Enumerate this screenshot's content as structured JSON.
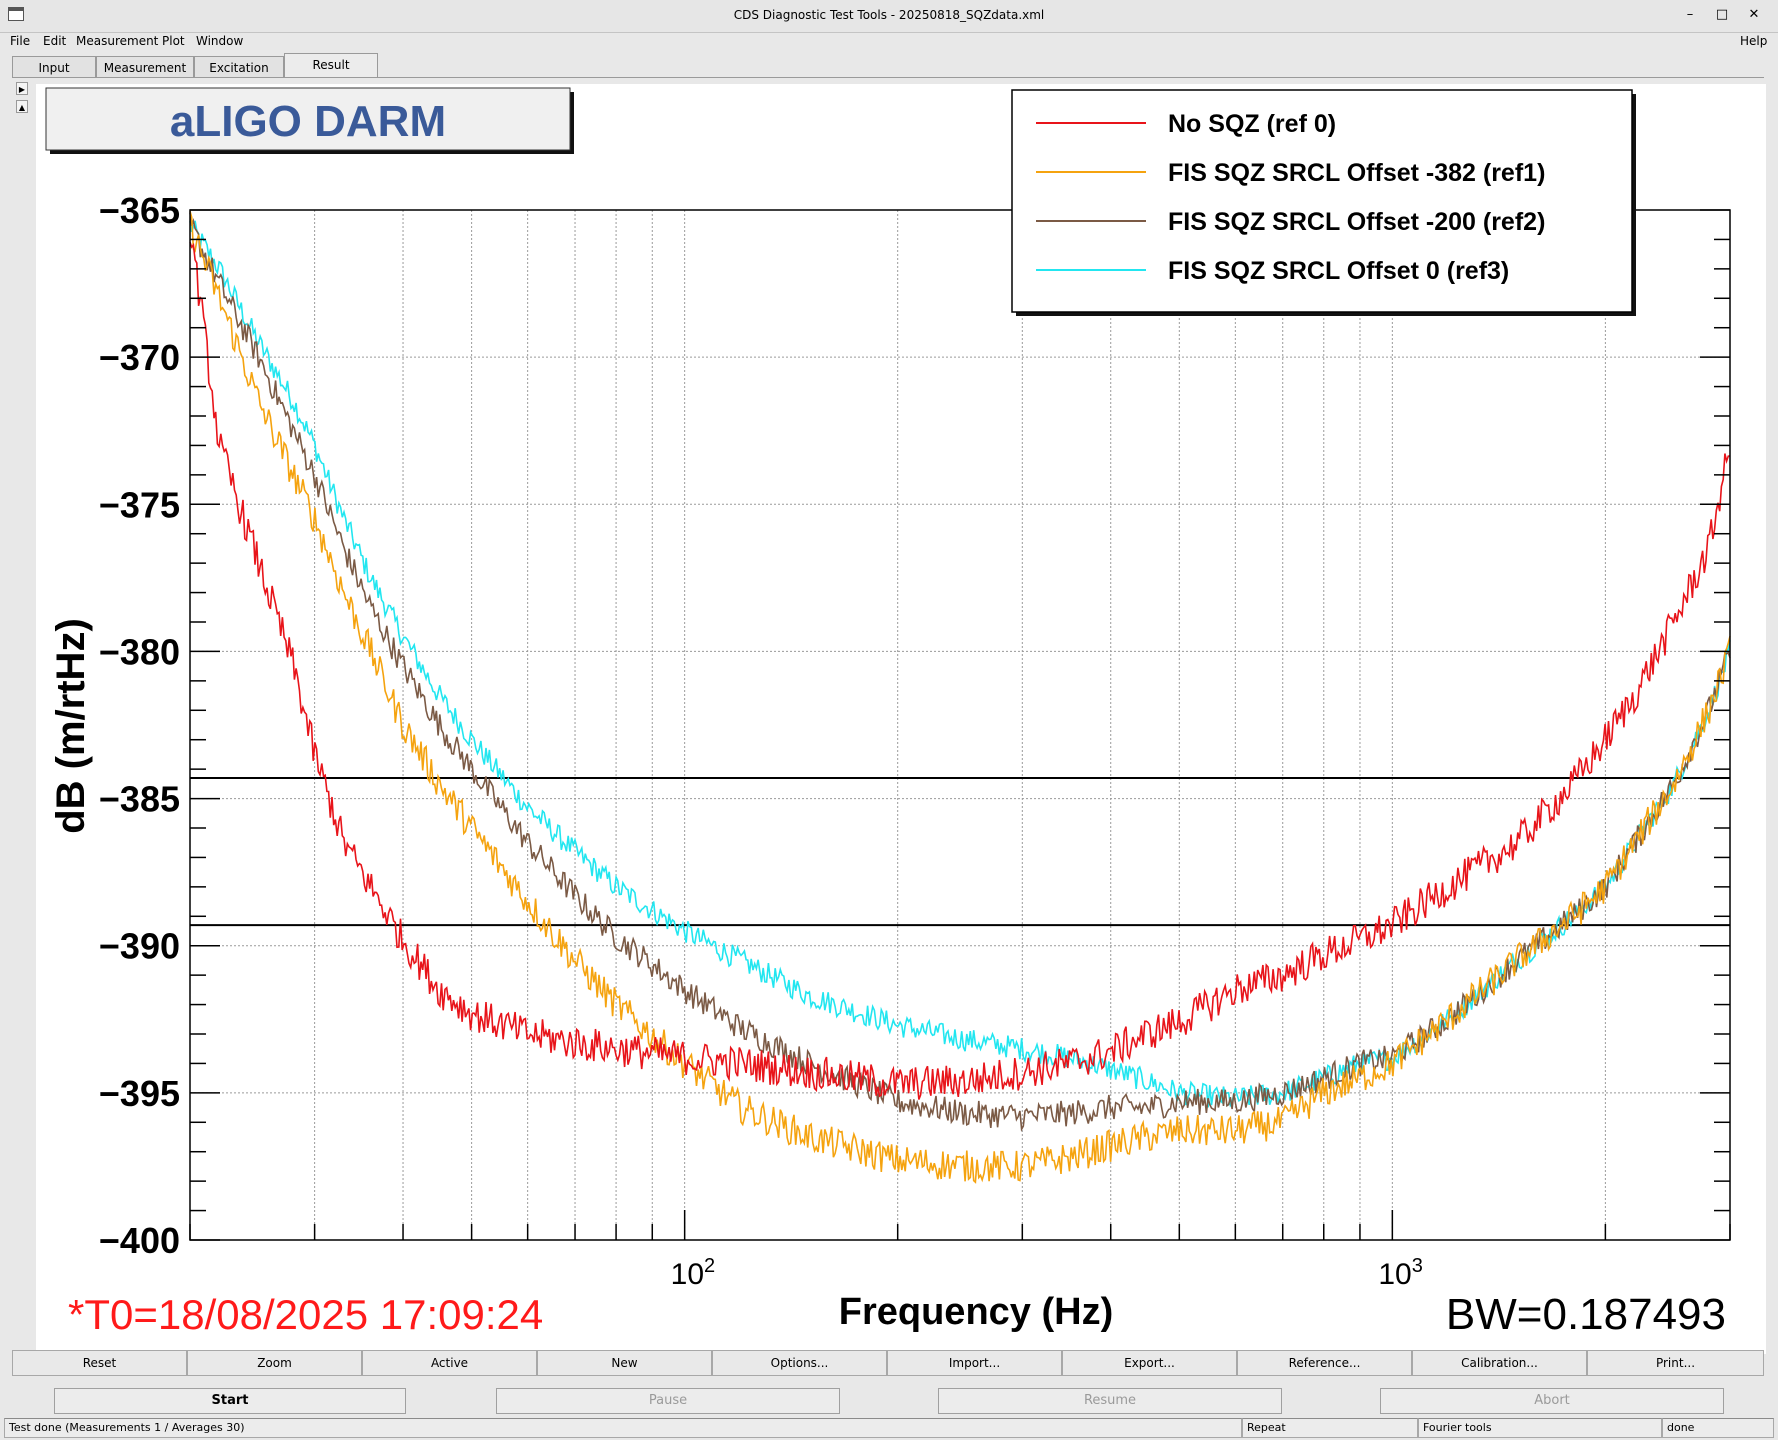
{
  "window": {
    "title": "CDS Diagnostic Test Tools - 20250818_SQZdata.xml",
    "minimize": "–",
    "maximize": "□",
    "close": "✕"
  },
  "menu": {
    "file": "File",
    "edit": "Edit",
    "measurement": "Measurement",
    "plot": "Plot",
    "window": "Window",
    "help": "Help"
  },
  "tabs": [
    "Input",
    "Measurement",
    "Excitation",
    "Result"
  ],
  "plot": {
    "title_box": "aLIGO DARM",
    "xlabel": "Frequency (Hz)",
    "ylabel": "dB (m/rtHz)",
    "timestamp": "*T0=18/08/2025 17:09:24",
    "bandwidth": "BW=0.187493",
    "y_ticks": [
      "−365",
      "−370",
      "−375",
      "−380",
      "−385",
      "−390",
      "−395",
      "−400"
    ],
    "x_tick_labels": [
      {
        "base": "10",
        "exp": "2"
      },
      {
        "base": "10",
        "exp": "3"
      }
    ],
    "legend": [
      {
        "label": "No SQZ (ref 0)",
        "color": "#e8141a"
      },
      {
        "label": "FIS SQZ SRCL Offset -382 (ref1)",
        "color": "#f5a30f"
      },
      {
        "label": "FIS SQZ SRCL Offset -200 (ref2)",
        "color": "#7b5a45"
      },
      {
        "label": "FIS SQZ SRCL Offset 0 (ref3)",
        "color": "#22e6f0"
      }
    ]
  },
  "chart_data": {
    "type": "line",
    "xlabel": "Frequency (Hz)",
    "ylabel": "dB (m/rtHz)",
    "x_scale": "log",
    "xlim": [
      20,
      3000
    ],
    "ylim": [
      -400,
      -365
    ],
    "grid": true,
    "legend_position": "top-right",
    "cursor_lines_y": [
      -384.3,
      -389.3
    ],
    "series": [
      {
        "name": "No SQZ (ref 0)",
        "color": "#e8141a",
        "x": [
          20,
          22,
          25,
          28,
          30,
          33,
          36,
          40,
          45,
          50,
          60,
          70,
          80,
          100,
          120,
          150,
          200,
          250,
          300,
          350,
          400,
          450,
          500,
          600,
          700,
          800,
          900,
          1000,
          1200,
          1500,
          1800,
          2000,
          2200,
          2500,
          2800,
          3000
        ],
        "y": [
          -365.5,
          -373,
          -377,
          -380.5,
          -383.5,
          -386.5,
          -388,
          -389.8,
          -391.5,
          -392.3,
          -393,
          -393.3,
          -393.5,
          -393.8,
          -394,
          -394.3,
          -394.7,
          -394.6,
          -394.3,
          -394,
          -393.6,
          -393,
          -392.6,
          -391.5,
          -391,
          -390.3,
          -389.8,
          -389.3,
          -388,
          -386.5,
          -384.5,
          -383,
          -381.5,
          -379,
          -376.5,
          -373
        ]
      },
      {
        "name": "FIS SQZ SRCL Offset -382 (ref1)",
        "color": "#f5a30f",
        "x": [
          20,
          22,
          25,
          28,
          30,
          33,
          36,
          40,
          45,
          50,
          60,
          70,
          80,
          100,
          120,
          150,
          200,
          250,
          300,
          350,
          400,
          450,
          500,
          600,
          700,
          800,
          900,
          1000,
          1200,
          1500,
          1800,
          2000,
          2200,
          2500,
          2800,
          3000
        ],
        "y": [
          -365.5,
          -368,
          -371.5,
          -374,
          -375.5,
          -378,
          -380,
          -382.5,
          -384.5,
          -386,
          -388.5,
          -390.5,
          -392,
          -394,
          -395.5,
          -396.5,
          -397.3,
          -397.5,
          -397.5,
          -397.2,
          -396.8,
          -396.5,
          -396.3,
          -396.3,
          -396,
          -395,
          -394.5,
          -394,
          -392.5,
          -390.5,
          -389,
          -388,
          -386.5,
          -384.5,
          -382,
          -380
        ]
      },
      {
        "name": "FIS SQZ SRCL Offset -200 (ref2)",
        "color": "#7b5a45",
        "x": [
          20,
          22,
          25,
          28,
          30,
          33,
          36,
          40,
          45,
          50,
          60,
          70,
          80,
          100,
          120,
          150,
          200,
          250,
          300,
          350,
          400,
          450,
          500,
          600,
          700,
          800,
          900,
          1000,
          1200,
          1500,
          1800,
          2000,
          2200,
          2500,
          2800,
          3000
        ],
        "y": [
          -365.5,
          -367.5,
          -370,
          -372.5,
          -374,
          -376.5,
          -378.5,
          -380.5,
          -382.5,
          -384,
          -386.5,
          -388.3,
          -389.7,
          -391.5,
          -392.8,
          -394,
          -395.3,
          -395.7,
          -395.8,
          -395.7,
          -395.5,
          -395.5,
          -395.3,
          -395.3,
          -395,
          -394.5,
          -394,
          -393.8,
          -392.5,
          -390.5,
          -389,
          -388,
          -386.5,
          -384.5,
          -382,
          -380
        ]
      },
      {
        "name": "FIS SQZ SRCL Offset 0 (ref3)",
        "color": "#22e6f0",
        "x": [
          20,
          22,
          25,
          28,
          30,
          33,
          36,
          40,
          45,
          50,
          60,
          70,
          80,
          100,
          120,
          150,
          200,
          250,
          300,
          350,
          400,
          450,
          500,
          600,
          700,
          800,
          900,
          1000,
          1200,
          1500,
          1800,
          2000,
          2200,
          2500,
          2800,
          3000
        ],
        "y": [
          -365.5,
          -367,
          -369.5,
          -371.5,
          -373,
          -375.5,
          -377.5,
          -379.5,
          -381.5,
          -383,
          -385.3,
          -386.8,
          -388,
          -389.5,
          -390.5,
          -391.7,
          -392.7,
          -393.2,
          -393.5,
          -393.8,
          -394.2,
          -394.6,
          -395,
          -395.2,
          -395,
          -394.5,
          -394,
          -393.8,
          -392.5,
          -390.5,
          -389,
          -388,
          -386.5,
          -384.5,
          -382,
          -380
        ]
      }
    ]
  },
  "buttons": [
    "Reset",
    "Zoom",
    "Active",
    "New",
    "Options...",
    "Import...",
    "Export...",
    "Reference...",
    "Calibration...",
    "Print..."
  ],
  "controls": {
    "start": "Start",
    "pause": "Pause",
    "resume": "Resume",
    "abort": "Abort"
  },
  "status": {
    "message": "Test done (Measurements 1 / Averages 30)",
    "mode": "Repeat",
    "tool": "Fourier tools",
    "state": "done"
  }
}
